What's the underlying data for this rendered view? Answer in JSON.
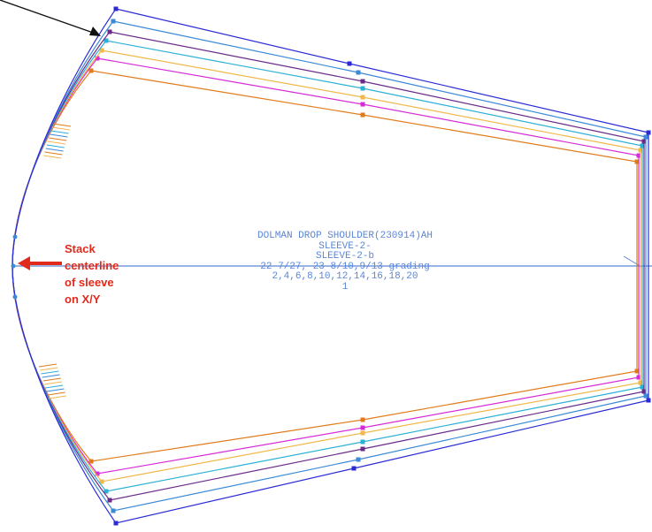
{
  "piece_label": {
    "line1": "DOLMAN DROP SHOULDER(230914)AH",
    "line2": "SLEEVE-2-",
    "line3": "SLEEVE-2-b",
    "line4": "22 7/27, 23 8/10,9/13 grading",
    "line5": "2,4,6,8,10,12,14,16,18,20",
    "line6": "1"
  },
  "annotation": {
    "line1": "Stack",
    "line2": "centerline",
    "line3": "of sleeve",
    "line4": "on X/Y"
  },
  "colors": {
    "annotation_text": "#e02a1c",
    "arrow_red": "#e02a1c",
    "centerline": "#5b86d6",
    "label_text": "#5b86d6",
    "grade_colors": [
      "#e07b1a",
      "#d62bd6",
      "#f0b84a",
      "#2bb0d6",
      "#6a2a8a",
      "#3a8ad6",
      "#2b2bd6"
    ]
  }
}
